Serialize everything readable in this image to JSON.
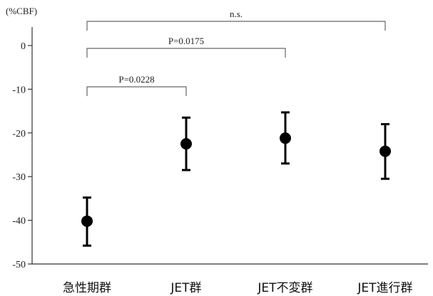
{
  "chart_data": {
    "type": "scatter",
    "title": "",
    "xlabel": "",
    "ylabel": "(%CBF)",
    "categories": [
      "急性期群",
      "JET群",
      "JET不変群",
      "JET進行群"
    ],
    "series": [
      {
        "values": [
          -40.2,
          -22.5,
          -21.2,
          -24.2
        ],
        "error_low": [
          -45.8,
          -28.5,
          -27.0,
          -30.5
        ],
        "error_high": [
          -34.8,
          -16.5,
          -15.3,
          -18.0
        ]
      }
    ],
    "ylim": [
      -50,
      8
    ],
    "yticks": [
      0,
      -10,
      -20,
      -30,
      -40,
      -50
    ],
    "grid": false,
    "annotations": [
      {
        "from": "急性期群",
        "to": "JET群",
        "text": "P=0.0228"
      },
      {
        "from": "急性期群",
        "to": "JET不変群",
        "text": "P=0.0175"
      },
      {
        "from": "急性期群",
        "to": "JET進行群",
        "text": "n.s."
      }
    ],
    "colors": {
      "marker": "#000000",
      "axis": "#333333",
      "bracket": "#666666"
    }
  }
}
